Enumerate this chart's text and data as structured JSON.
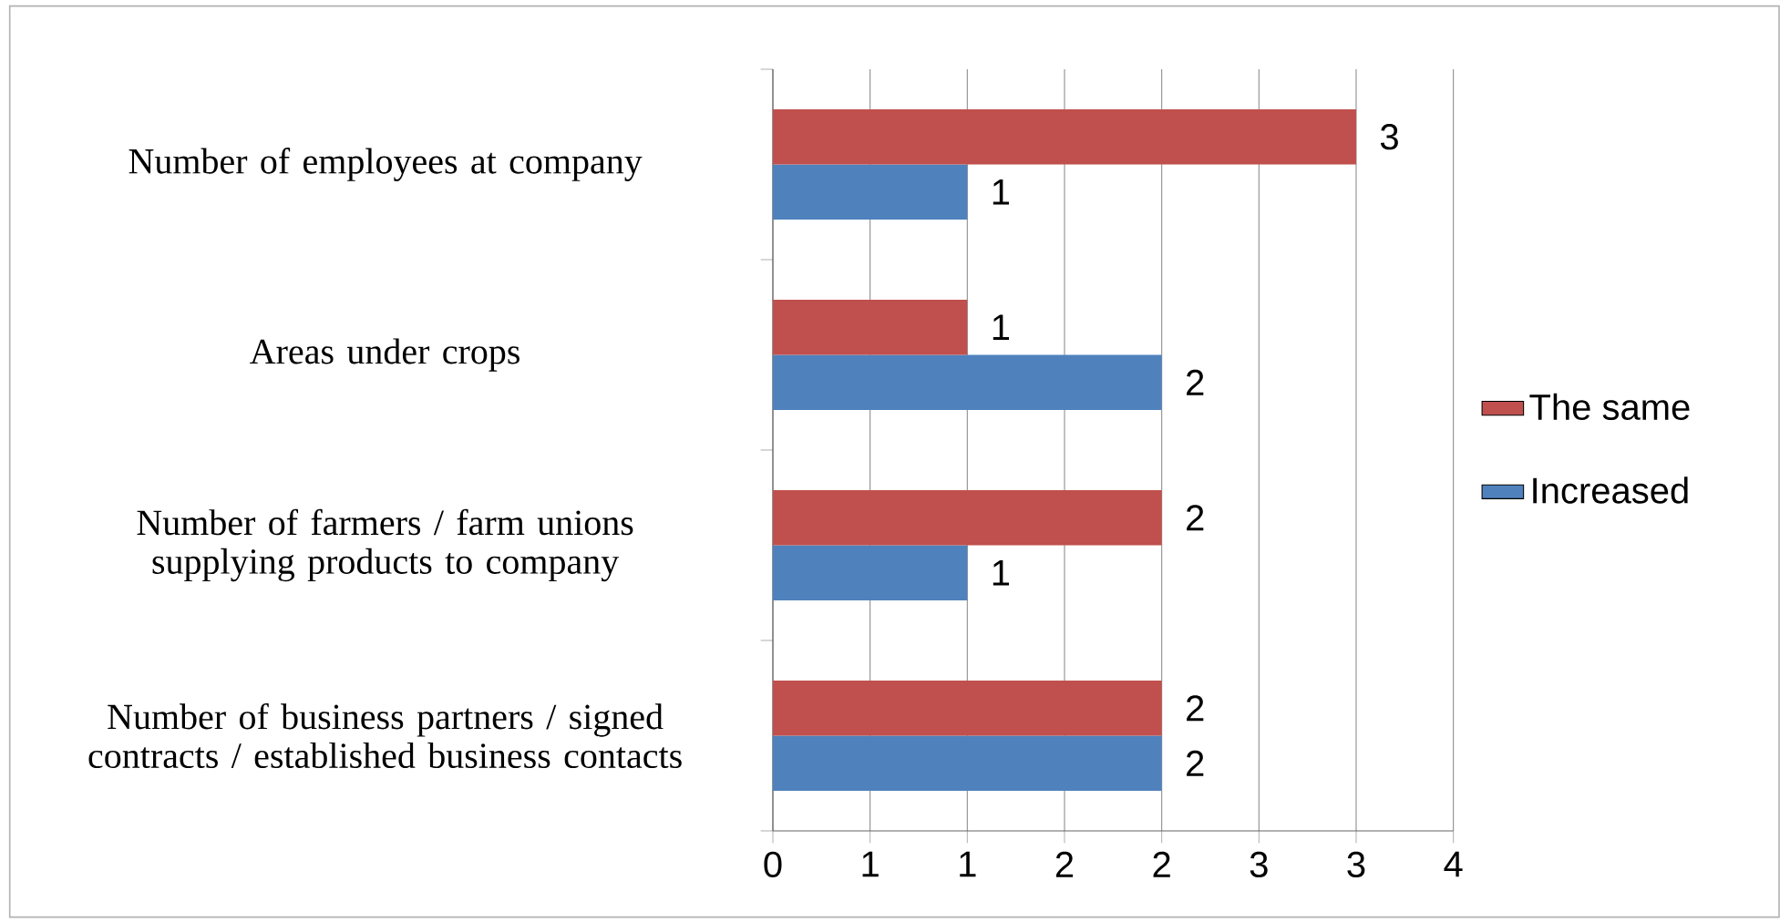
{
  "chart_data": {
    "type": "bar",
    "orientation": "horizontal",
    "categories": [
      "Number of employees at company",
      "Areas under crops",
      "Number of farmers / farm unions supplying products to company",
      "Number of business partners / signed contracts / established business contacts"
    ],
    "series": [
      {
        "name": "Increased",
        "color": "#4f81bd",
        "values": [
          1,
          2,
          1,
          2
        ]
      },
      {
        "name": "The same",
        "color": "#c0504d",
        "values": [
          3,
          1,
          2,
          2
        ]
      }
    ],
    "xlim": [
      0,
      3.5
    ],
    "xticks": [
      0,
      {
        "value": 0.5,
        "label": "1"
      },
      1,
      {
        "value": 1.5,
        "label": "2"
      },
      2,
      {
        "value": 2.5,
        "label": "3"
      },
      3,
      {
        "value": 3.5,
        "label": "4"
      }
    ],
    "grid": "x",
    "legend": "right",
    "data_labels": true
  }
}
